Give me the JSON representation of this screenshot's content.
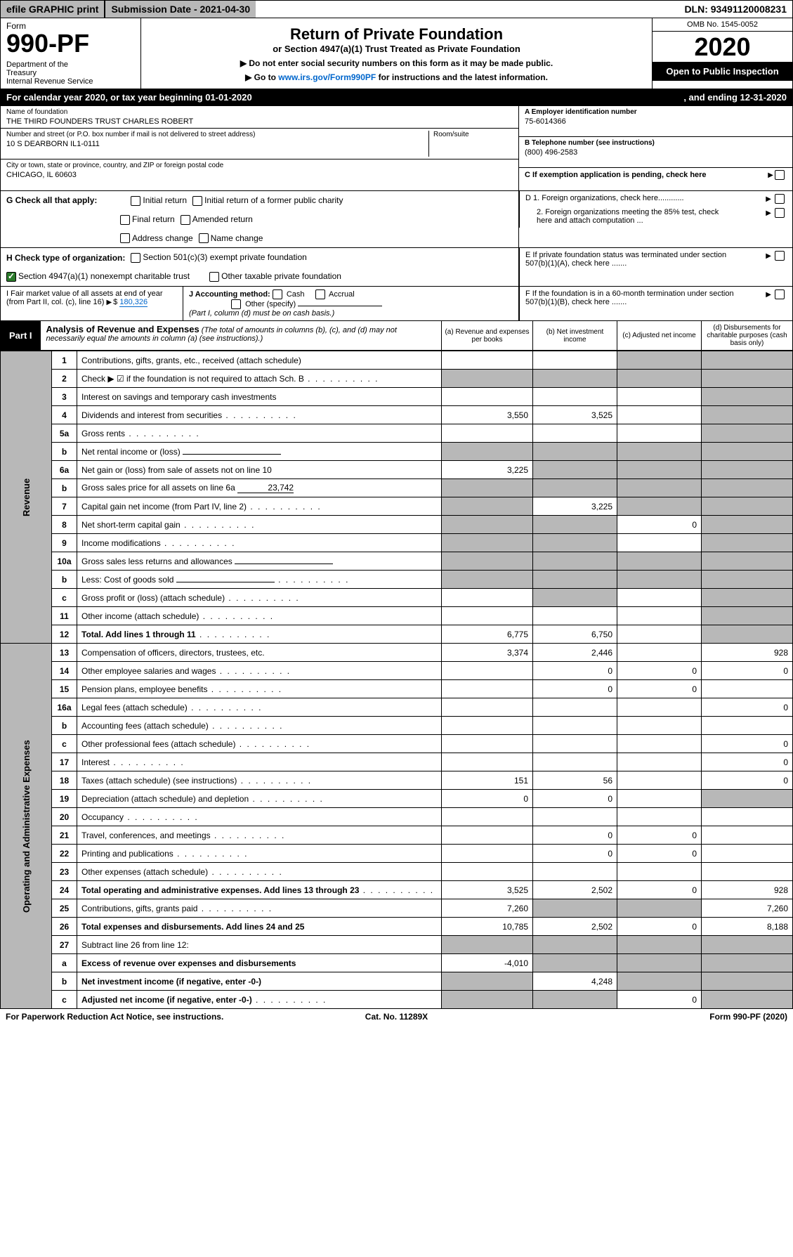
{
  "top": {
    "efile": "efile GRAPHIC print",
    "sub_date_label": "Submission Date - 2021-04-30",
    "dln": "DLN: 93491120008231"
  },
  "header": {
    "form_label": "Form",
    "form_num": "990-PF",
    "dept": "Department of the Treasury\nInternal Revenue Service",
    "title": "Return of Private Foundation",
    "subtitle": "or Section 4947(a)(1) Trust Treated as Private Foundation",
    "instr1": "▶ Do not enter social security numbers on this form as it may be made public.",
    "instr2_prefix": "▶ Go to ",
    "instr2_link": "www.irs.gov/Form990PF",
    "instr2_suffix": " for instructions and the latest information.",
    "omb": "OMB No. 1545-0052",
    "year": "2020",
    "open": "Open to Public Inspection"
  },
  "cal": {
    "prefix": "For calendar year 2020, or tax year beginning 01-01-2020",
    "ending": ", and ending 12-31-2020"
  },
  "name": {
    "label": "Name of foundation",
    "value": "THE THIRD FOUNDERS TRUST CHARLES ROBERT"
  },
  "ein": {
    "label": "A Employer identification number",
    "value": "75-6014366"
  },
  "addr": {
    "label": "Number and street (or P.O. box number if mail is not delivered to street address)",
    "value": "10 S DEARBORN IL1-0111",
    "room": "Room/suite"
  },
  "phone": {
    "label": "B Telephone number (see instructions)",
    "value": "(800) 496-2583"
  },
  "city": {
    "label": "City or town, state or province, country, and ZIP or foreign postal code",
    "value": "CHICAGO, IL  60603"
  },
  "c_label": "C If exemption application is pending, check here",
  "g": {
    "label": "G Check all that apply:",
    "opts": [
      "Initial return",
      "Initial return of a former public charity",
      "Final return",
      "Amended return",
      "Address change",
      "Name change"
    ]
  },
  "d": {
    "d1": "D 1. Foreign organizations, check here............",
    "d2": "2. Foreign organizations meeting the 85% test, check here and attach computation ...",
    "e": "E  If private foundation status was terminated under section 507(b)(1)(A), check here .......",
    "f": "F  If the foundation is in a 60-month termination under section 507(b)(1)(B), check here ......."
  },
  "h": {
    "label": "H Check type of organization:",
    "o1": "Section 501(c)(3) exempt private foundation",
    "o2": "Section 4947(a)(1) nonexempt charitable trust",
    "o3": "Other taxable private foundation"
  },
  "i": {
    "label": "I Fair market value of all assets at end of year (from Part II, col. (c), line 16)",
    "arrow": "▶$",
    "value": "180,326"
  },
  "j": {
    "label": "J Accounting method:",
    "cash": "Cash",
    "accrual": "Accrual",
    "other": "Other (specify)",
    "note": "(Part I, column (d) must be on cash basis.)"
  },
  "part1": {
    "badge": "Part I",
    "title": "Analysis of Revenue and Expenses",
    "desc": "(The total of amounts in columns (b), (c), and (d) may not necessarily equal the amounts in column (a) (see instructions).)",
    "col_a": "(a)    Revenue and expenses per books",
    "col_b": "(b)   Net investment income",
    "col_c": "(c)   Adjusted net income",
    "col_d": "(d)   Disbursements for charitable purposes (cash basis only)"
  },
  "vlabels": {
    "revenue": "Revenue",
    "expenses": "Operating and Administrative Expenses"
  },
  "rows": [
    {
      "n": "1",
      "d": "Contributions, gifts, grants, etc., received (attach schedule)",
      "a": "",
      "b": "",
      "c": "g",
      "dd": "g"
    },
    {
      "n": "2",
      "d": "Check ▶ ☑ if the foundation is not required to attach Sch. B",
      "dots": true,
      "a": "g",
      "b": "g",
      "c": "g",
      "dd": "g"
    },
    {
      "n": "3",
      "d": "Interest on savings and temporary cash investments",
      "a": "",
      "b": "",
      "c": "",
      "dd": "g"
    },
    {
      "n": "4",
      "d": "Dividends and interest from securities",
      "dots": true,
      "a": "3,550",
      "b": "3,525",
      "c": "",
      "dd": "g"
    },
    {
      "n": "5a",
      "d": "Gross rents",
      "dots": true,
      "a": "",
      "b": "",
      "c": "",
      "dd": "g"
    },
    {
      "n": "b",
      "d": "Net rental income or (loss)",
      "inline": true,
      "a": "g",
      "b": "g",
      "c": "g",
      "dd": "g"
    },
    {
      "n": "6a",
      "d": "Net gain or (loss) from sale of assets not on line 10",
      "a": "3,225",
      "b": "g",
      "c": "g",
      "dd": "g"
    },
    {
      "n": "b",
      "d": "Gross sales price for all assets on line 6a",
      "inline_val": "23,742",
      "a": "g",
      "b": "g",
      "c": "g",
      "dd": "g"
    },
    {
      "n": "7",
      "d": "Capital gain net income (from Part IV, line 2)",
      "dots": true,
      "a": "g",
      "b": "3,225",
      "c": "g",
      "dd": "g"
    },
    {
      "n": "8",
      "d": "Net short-term capital gain",
      "dots": true,
      "a": "g",
      "b": "g",
      "c": "0",
      "dd": "g"
    },
    {
      "n": "9",
      "d": "Income modifications",
      "dots": true,
      "a": "g",
      "b": "g",
      "c": "",
      "dd": "g"
    },
    {
      "n": "10a",
      "d": "Gross sales less returns and allowances",
      "inline": true,
      "a": "g",
      "b": "g",
      "c": "g",
      "dd": "g"
    },
    {
      "n": "b",
      "d": "Less: Cost of goods sold",
      "dots": true,
      "inline": true,
      "a": "g",
      "b": "g",
      "c": "g",
      "dd": "g"
    },
    {
      "n": "c",
      "d": "Gross profit or (loss) (attach schedule)",
      "dots": true,
      "a": "",
      "b": "g",
      "c": "",
      "dd": "g"
    },
    {
      "n": "11",
      "d": "Other income (attach schedule)",
      "dots": true,
      "a": "",
      "b": "",
      "c": "",
      "dd": "g"
    },
    {
      "n": "12",
      "d": "Total. Add lines 1 through 11",
      "bold": true,
      "dots": true,
      "a": "6,775",
      "b": "6,750",
      "c": "",
      "dd": "g"
    }
  ],
  "exp_rows": [
    {
      "n": "13",
      "d": "Compensation of officers, directors, trustees, etc.",
      "a": "3,374",
      "b": "2,446",
      "c": "",
      "dd": "928"
    },
    {
      "n": "14",
      "d": "Other employee salaries and wages",
      "dots": true,
      "a": "",
      "b": "0",
      "c": "0",
      "dd": "0"
    },
    {
      "n": "15",
      "d": "Pension plans, employee benefits",
      "dots": true,
      "a": "",
      "b": "0",
      "c": "0",
      "dd": ""
    },
    {
      "n": "16a",
      "d": "Legal fees (attach schedule)",
      "dots": true,
      "a": "",
      "b": "",
      "c": "",
      "dd": "0"
    },
    {
      "n": "b",
      "d": "Accounting fees (attach schedule)",
      "dots": true,
      "a": "",
      "b": "",
      "c": "",
      "dd": ""
    },
    {
      "n": "c",
      "d": "Other professional fees (attach schedule)",
      "dots": true,
      "a": "",
      "b": "",
      "c": "",
      "dd": "0"
    },
    {
      "n": "17",
      "d": "Interest",
      "dots": true,
      "a": "",
      "b": "",
      "c": "",
      "dd": "0"
    },
    {
      "n": "18",
      "d": "Taxes (attach schedule) (see instructions)",
      "dots": true,
      "a": "151",
      "b": "56",
      "c": "",
      "dd": "0"
    },
    {
      "n": "19",
      "d": "Depreciation (attach schedule) and depletion",
      "dots": true,
      "a": "0",
      "b": "0",
      "c": "",
      "dd": "g"
    },
    {
      "n": "20",
      "d": "Occupancy",
      "dots": true,
      "a": "",
      "b": "",
      "c": "",
      "dd": ""
    },
    {
      "n": "21",
      "d": "Travel, conferences, and meetings",
      "dots": true,
      "a": "",
      "b": "0",
      "c": "0",
      "dd": ""
    },
    {
      "n": "22",
      "d": "Printing and publications",
      "dots": true,
      "a": "",
      "b": "0",
      "c": "0",
      "dd": ""
    },
    {
      "n": "23",
      "d": "Other expenses (attach schedule)",
      "dots": true,
      "a": "",
      "b": "",
      "c": "",
      "dd": ""
    },
    {
      "n": "24",
      "d": "Total operating and administrative expenses. Add lines 13 through 23",
      "bold": true,
      "dots": true,
      "a": "3,525",
      "b": "2,502",
      "c": "0",
      "dd": "928"
    },
    {
      "n": "25",
      "d": "Contributions, gifts, grants paid",
      "dots": true,
      "a": "7,260",
      "b": "g",
      "c": "g",
      "dd": "7,260"
    },
    {
      "n": "26",
      "d": "Total expenses and disbursements. Add lines 24 and 25",
      "bold": true,
      "a": "10,785",
      "b": "2,502",
      "c": "0",
      "dd": "8,188"
    },
    {
      "n": "27",
      "d": "Subtract line 26 from line 12:",
      "a": "g",
      "b": "g",
      "c": "g",
      "dd": "g"
    },
    {
      "n": "a",
      "d": "Excess of revenue over expenses and disbursements",
      "bold": true,
      "a": "-4,010",
      "b": "g",
      "c": "g",
      "dd": "g"
    },
    {
      "n": "b",
      "d": "Net investment income (if negative, enter -0-)",
      "bold": true,
      "a": "g",
      "b": "4,248",
      "c": "g",
      "dd": "g"
    },
    {
      "n": "c",
      "d": "Adjusted net income (if negative, enter -0-)",
      "bold": true,
      "dots": true,
      "a": "g",
      "b": "g",
      "c": "0",
      "dd": "g"
    }
  ],
  "footer": {
    "left": "For Paperwork Reduction Act Notice, see instructions.",
    "mid": "Cat. No. 11289X",
    "right": "Form 990-PF (2020)"
  },
  "colors": {
    "gray": "#b8b8b8",
    "black": "#000000",
    "link": "#0066cc",
    "check_green": "#2a7a2a"
  }
}
